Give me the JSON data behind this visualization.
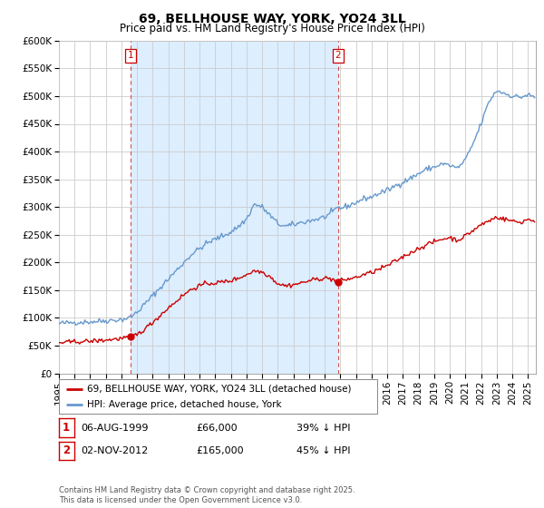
{
  "title": "69, BELLHOUSE WAY, YORK, YO24 3LL",
  "subtitle": "Price paid vs. HM Land Registry's House Price Index (HPI)",
  "ylim": [
    0,
    600000
  ],
  "yticks": [
    0,
    50000,
    100000,
    150000,
    200000,
    250000,
    300000,
    350000,
    400000,
    450000,
    500000,
    550000,
    600000
  ],
  "xlim_start": 1995.0,
  "xlim_end": 2025.5,
  "background_color": "#ffffff",
  "grid_color": "#cccccc",
  "hpi_color": "#6699cc",
  "price_color": "#cc0000",
  "shade_color": "#ddeeff",
  "sale1_date": 1999.59,
  "sale1_price": 66000,
  "sale1_label": "1",
  "sale2_date": 2012.84,
  "sale2_price": 165000,
  "sale2_label": "2",
  "legend_label1": "69, BELLHOUSE WAY, YORK, YO24 3LL (detached house)",
  "legend_label2": "HPI: Average price, detached house, York",
  "annotation1_date": "06-AUG-1999",
  "annotation1_price": "£66,000",
  "annotation1_hpi": "39% ↓ HPI",
  "annotation2_date": "02-NOV-2012",
  "annotation2_price": "£165,000",
  "annotation2_hpi": "45% ↓ HPI",
  "footer": "Contains HM Land Registry data © Crown copyright and database right 2025.\nThis data is licensed under the Open Government Licence v3.0.",
  "title_fontsize": 10,
  "subtitle_fontsize": 8.5,
  "tick_fontsize": 7.5,
  "legend_fontsize": 7.5,
  "annot_fontsize": 8,
  "footer_fontsize": 6
}
